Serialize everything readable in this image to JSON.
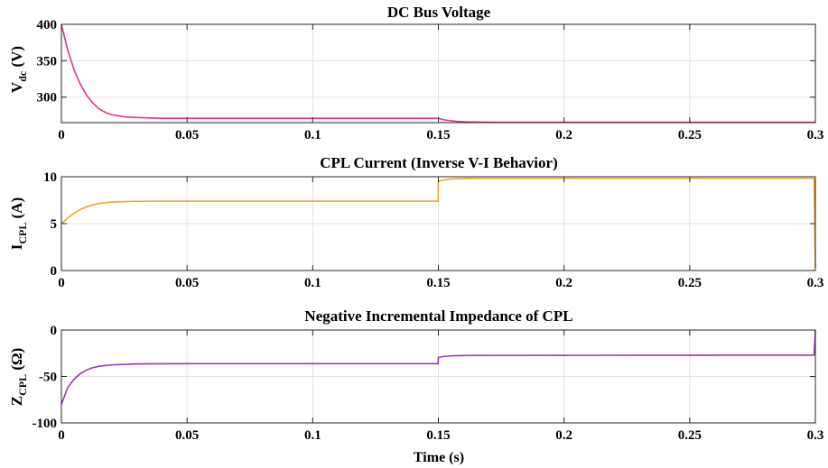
{
  "chart_data": [
    {
      "type": "line",
      "title": "DC Bus Voltage",
      "ylabel_main": "V",
      "ylabel_sub": "dc",
      "ylabel_unit": " (V)",
      "xlabel": "",
      "xlim": [
        0,
        0.3
      ],
      "ylim": [
        265,
        400
      ],
      "xticks": [
        0,
        0.05,
        0.1,
        0.15,
        0.2,
        0.25,
        0.3
      ],
      "xtick_labels": [
        "0",
        "0.05",
        "0.1",
        "0.15",
        "0.2",
        "0.25",
        "0.3"
      ],
      "yticks": [
        300,
        350,
        400
      ],
      "ytick_labels": [
        "300",
        "350",
        "400"
      ],
      "color": "#e0338c",
      "series": [
        {
          "x": [
            0,
            0.0025,
            0.005,
            0.0075,
            0.01,
            0.0125,
            0.015,
            0.0175,
            0.02,
            0.025,
            0.03,
            0.04,
            0.05,
            0.1,
            0.149,
            0.15,
            0.152,
            0.155,
            0.158,
            0.162,
            0.17,
            0.2,
            0.25,
            0.3
          ],
          "y": [
            400,
            365,
            338,
            318,
            303,
            292,
            284,
            279,
            276,
            273,
            272,
            271,
            271,
            271,
            271,
            271,
            269,
            267.5,
            266.5,
            266,
            265.5,
            265.5,
            265.5,
            265.5
          ]
        }
      ]
    },
    {
      "type": "line",
      "title": "CPL Current (Inverse V-I Behavior)",
      "ylabel_main": "I",
      "ylabel_sub": "CPL",
      "ylabel_unit": " (A)",
      "xlabel": "",
      "xlim": [
        0,
        0.3
      ],
      "ylim": [
        0,
        10
      ],
      "xticks": [
        0,
        0.05,
        0.1,
        0.15,
        0.2,
        0.25,
        0.3
      ],
      "xtick_labels": [
        "0",
        "0.05",
        "0.1",
        "0.15",
        "0.2",
        "0.25",
        "0.3"
      ],
      "yticks": [
        0,
        5,
        10
      ],
      "ytick_labels": [
        "0",
        "5",
        "10"
      ],
      "color": "#eba82e",
      "series": [
        {
          "x": [
            0,
            0.0025,
            0.005,
            0.0075,
            0.01,
            0.0125,
            0.015,
            0.02,
            0.025,
            0.03,
            0.04,
            0.05,
            0.1,
            0.1499,
            0.15,
            0.152,
            0.155,
            0.16,
            0.17,
            0.2,
            0.25,
            0.299,
            0.2995,
            0.3
          ],
          "y": [
            5.0,
            5.6,
            6.1,
            6.5,
            6.8,
            7.0,
            7.15,
            7.3,
            7.35,
            7.38,
            7.4,
            7.4,
            7.4,
            7.4,
            9.5,
            9.65,
            9.75,
            9.8,
            9.82,
            9.82,
            9.82,
            9.82,
            9.82,
            0.3
          ]
        }
      ]
    },
    {
      "type": "line",
      "title": "Negative Incremental Impedance of CPL",
      "ylabel_main": "Z",
      "ylabel_sub": "CPL",
      "ylabel_unit": " (Ω)",
      "xlabel": "Time (s)",
      "xlim": [
        0,
        0.3
      ],
      "ylim": [
        -100,
        0
      ],
      "xticks": [
        0,
        0.05,
        0.1,
        0.15,
        0.2,
        0.25,
        0.3
      ],
      "xtick_labels": [
        "0",
        "0.05",
        "0.1",
        "0.15",
        "0.2",
        "0.25",
        "0.3"
      ],
      "yticks": [
        -100,
        -50,
        0
      ],
      "ytick_labels": [
        "-100",
        "-50",
        "0"
      ],
      "color": "#9b35b8",
      "series": [
        {
          "x": [
            0,
            0.0025,
            0.005,
            0.0075,
            0.01,
            0.0125,
            0.015,
            0.02,
            0.025,
            0.03,
            0.04,
            0.05,
            0.1,
            0.1499,
            0.15,
            0.152,
            0.155,
            0.16,
            0.17,
            0.2,
            0.25,
            0.299,
            0.2995,
            0.3
          ],
          "y": [
            -80,
            -62,
            -53,
            -47,
            -43,
            -40.5,
            -39,
            -37.5,
            -37,
            -36.5,
            -36.3,
            -36.2,
            -36.2,
            -36.2,
            -29.5,
            -28.5,
            -27.8,
            -27.5,
            -27.3,
            -27.2,
            -27.1,
            -27.0,
            -27.0,
            0
          ]
        }
      ]
    }
  ]
}
